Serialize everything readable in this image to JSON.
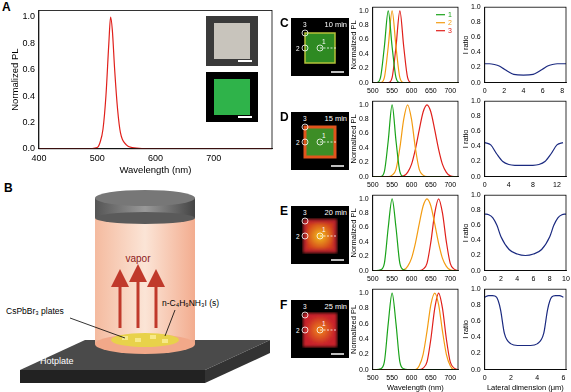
{
  "chart_data": [
    {
      "panel": "A",
      "type": "line",
      "x_label": "Wavelength (nm)",
      "y_label": "Normalized PL",
      "x": [
        400,
        480,
        500,
        505,
        510,
        515,
        520,
        523,
        526,
        530,
        535,
        540,
        550,
        560,
        600,
        700,
        800
      ],
      "series": [
        {
          "color": "#e0201b",
          "values": [
            0,
            0,
            0.01,
            0.05,
            0.15,
            0.4,
            0.8,
            1.0,
            0.9,
            0.6,
            0.3,
            0.12,
            0.03,
            0.01,
            0,
            0,
            0
          ]
        }
      ],
      "xlim": [
        400,
        800
      ],
      "ylim": [
        0,
        1.05
      ],
      "xticks": [
        400,
        500,
        600,
        700
      ],
      "yticks": [
        {
          "value": 0,
          "label": "0.0"
        },
        0.2,
        0.4,
        0.6,
        0.8,
        {
          "value": 1,
          "label": "1.0"
        }
      ],
      "grid": false
    },
    {
      "type": "line",
      "y_label": "Normalized PL",
      "x": [
        500,
        510,
        520,
        530,
        540,
        550,
        560,
        570,
        580,
        590,
        600,
        610,
        620,
        630,
        640,
        650,
        660,
        670,
        680,
        690,
        700,
        710,
        720
      ],
      "series": [
        {
          "name": "1",
          "color": "#1aa31a",
          "values": [
            0,
            0,
            0.07,
            0.5,
            1,
            0.5,
            0.07,
            0,
            0,
            0,
            0,
            0,
            0,
            0,
            0,
            0,
            0,
            0,
            0,
            0,
            0,
            0,
            0
          ]
        },
        {
          "name": "2",
          "color": "#f39c12",
          "values": [
            0,
            0,
            0,
            0.07,
            0.5,
            1,
            0.5,
            0.07,
            0,
            0,
            0,
            0,
            0,
            0,
            0,
            0,
            0,
            0,
            0,
            0,
            0,
            0,
            0
          ]
        },
        {
          "name": "3",
          "color": "#e0201b",
          "values": [
            0,
            0,
            0,
            0,
            0,
            0.07,
            0.5,
            1,
            0.5,
            0.07,
            0,
            0,
            0,
            0,
            0,
            0,
            0,
            0,
            0,
            0,
            0,
            0,
            0
          ]
        }
      ],
      "xlim": [
        500,
        720
      ],
      "ylim": [
        0,
        1.05
      ],
      "xticks": [
        500,
        550,
        600,
        650,
        700
      ],
      "yticks": [
        {
          "value": 0,
          "label": "0.0"
        },
        0.2,
        0.4,
        0.6,
        0.8,
        {
          "value": 1,
          "label": "1.0"
        }
      ],
      "legend": "top-right",
      "grid": false
    },
    {
      "type": "line",
      "y_label": "I ratio",
      "x": [
        0,
        0.5,
        1,
        1.5,
        2,
        2.5,
        3,
        4,
        5,
        5.5,
        6,
        6.5,
        7,
        7.5,
        8,
        8.4
      ],
      "series": [
        {
          "color": "#1b2a80",
          "values": [
            0.25,
            0.25,
            0.24,
            0.22,
            0.18,
            0.14,
            0.11,
            0.1,
            0.11,
            0.14,
            0.18,
            0.22,
            0.24,
            0.25,
            0.25,
            0.25
          ]
        }
      ],
      "xlim": [
        0,
        8.4
      ],
      "ylim": [
        0,
        1
      ],
      "xticks": [
        0,
        2,
        4,
        6,
        8
      ],
      "yticks": [
        {
          "value": 0,
          "label": "0.0"
        },
        0.2,
        0.4,
        0.6,
        0.8,
        {
          "value": 1,
          "label": "1.0"
        }
      ],
      "grid": false
    },
    {
      "type": "line",
      "y_label": "Normalized PL",
      "x": [
        500,
        510,
        520,
        530,
        540,
        550,
        560,
        570,
        580,
        590,
        600,
        610,
        620,
        630,
        640,
        650,
        660,
        670,
        680,
        690,
        700,
        710,
        720
      ],
      "series": [
        {
          "color": "#1aa31a",
          "values": [
            0,
            0,
            0,
            0.07,
            0.5,
            1,
            0.5,
            0.07,
            0,
            0,
            0,
            0,
            0,
            0,
            0,
            0,
            0,
            0,
            0,
            0,
            0,
            0,
            0
          ]
        },
        {
          "color": "#f39c12",
          "values": [
            0,
            0,
            0,
            0,
            0,
            0.02,
            0.1,
            0.4,
            0.8,
            1,
            0.8,
            0.4,
            0.1,
            0.02,
            0,
            0,
            0,
            0,
            0,
            0,
            0,
            0,
            0
          ]
        },
        {
          "color": "#e0201b",
          "values": [
            0,
            0,
            0,
            0,
            0,
            0,
            0,
            0,
            0.01,
            0.06,
            0.17,
            0.38,
            0.65,
            0.9,
            1,
            0.9,
            0.65,
            0.38,
            0.17,
            0.06,
            0.01,
            0,
            0
          ]
        }
      ],
      "xlim": [
        500,
        720
      ],
      "ylim": [
        0,
        1.05
      ],
      "xticks": [
        500,
        550,
        600,
        650,
        700
      ],
      "yticks": [
        {
          "value": 0,
          "label": "0.0"
        },
        0.2,
        0.4,
        0.6,
        0.8,
        {
          "value": 1,
          "label": "1.0"
        }
      ],
      "grid": false
    },
    {
      "type": "line",
      "y_label": "I ratio",
      "x": [
        0,
        1,
        2,
        3,
        4,
        5,
        6,
        7,
        8,
        9,
        10,
        11,
        12,
        13
      ],
      "series": [
        {
          "color": "#1b2a80",
          "values": [
            0.45,
            0.42,
            0.3,
            0.2,
            0.16,
            0.15,
            0.15,
            0.15,
            0.15,
            0.16,
            0.2,
            0.3,
            0.42,
            0.45
          ]
        }
      ],
      "xlim": [
        0,
        13.5
      ],
      "ylim": [
        0,
        1
      ],
      "xticks": [
        0,
        4,
        8,
        12
      ],
      "yticks": [
        {
          "value": 0,
          "label": "0.0"
        },
        0.2,
        0.4,
        0.6,
        0.8,
        {
          "value": 1,
          "label": "1.0"
        }
      ],
      "grid": false
    },
    {
      "type": "line",
      "y_label": "Normalized PL",
      "x": [
        500,
        510,
        520,
        530,
        540,
        550,
        560,
        570,
        580,
        590,
        600,
        610,
        620,
        630,
        640,
        650,
        660,
        670,
        680,
        690,
        700,
        710,
        720
      ],
      "series": [
        {
          "color": "#1aa31a",
          "values": [
            0,
            0,
            0.01,
            0.1,
            0.6,
            1,
            0.6,
            0.1,
            0.01,
            0,
            0,
            0,
            0,
            0,
            0,
            0,
            0,
            0,
            0,
            0,
            0,
            0,
            0
          ]
        },
        {
          "color": "#f39c12",
          "values": [
            0,
            0,
            0,
            0,
            0,
            0,
            0,
            0,
            0.01,
            0.06,
            0.17,
            0.38,
            0.65,
            0.9,
            1,
            0.9,
            0.65,
            0.38,
            0.17,
            0.06,
            0.01,
            0,
            0
          ]
        },
        {
          "color": "#e0201b",
          "values": [
            0,
            0,
            0,
            0,
            0,
            0,
            0,
            0,
            0,
            0,
            0,
            0,
            0,
            0.02,
            0.1,
            0.4,
            0.8,
            1,
            0.8,
            0.4,
            0.1,
            0.02,
            0
          ]
        }
      ],
      "xlim": [
        500,
        720
      ],
      "ylim": [
        0,
        1.05
      ],
      "xticks": [
        500,
        550,
        600,
        650,
        700
      ],
      "yticks": [
        {
          "value": 0,
          "label": "0.0"
        },
        0.2,
        0.4,
        0.6,
        0.8,
        {
          "value": 1,
          "label": "1.0"
        }
      ],
      "grid": false
    },
    {
      "type": "line",
      "y_label": "I ratio",
      "x": [
        0,
        0.5,
        1,
        1.5,
        2,
        3,
        4,
        5,
        6,
        7,
        8,
        8.5,
        9,
        9.5,
        10
      ],
      "series": [
        {
          "color": "#1b2a80",
          "values": [
            0.75,
            0.74,
            0.7,
            0.6,
            0.45,
            0.28,
            0.22,
            0.2,
            0.22,
            0.28,
            0.45,
            0.6,
            0.7,
            0.74,
            0.75
          ]
        }
      ],
      "xlim": [
        0,
        10
      ],
      "ylim": [
        0,
        1
      ],
      "xticks": [
        0,
        2,
        4,
        6,
        8,
        10
      ],
      "yticks": [
        {
          "value": 0,
          "label": "0.0"
        },
        0.2,
        0.4,
        0.6,
        0.8,
        {
          "value": 1,
          "label": "1.0"
        }
      ],
      "grid": false
    },
    {
      "type": "line",
      "x_label": "Wavelength (nm)",
      "y_label": "Normalized PL",
      "x": [
        500,
        510,
        520,
        530,
        540,
        550,
        560,
        570,
        580,
        590,
        600,
        610,
        620,
        630,
        640,
        650,
        660,
        670,
        680,
        690,
        700,
        710,
        720
      ],
      "series": [
        {
          "color": "#1aa31a",
          "values": [
            0,
            0,
            0.01,
            0.1,
            0.6,
            1,
            0.6,
            0.1,
            0.01,
            0,
            0,
            0,
            0,
            0,
            0,
            0,
            0,
            0,
            0,
            0,
            0,
            0,
            0
          ]
        },
        {
          "color": "#f39c12",
          "values": [
            0,
            0,
            0,
            0,
            0,
            0,
            0,
            0,
            0,
            0,
            0,
            0,
            0.05,
            0.2,
            0.5,
            0.85,
            1,
            0.85,
            0.5,
            0.2,
            0.05,
            0,
            0
          ]
        },
        {
          "color": "#e0201b",
          "values": [
            0,
            0,
            0,
            0,
            0,
            0,
            0,
            0,
            0,
            0,
            0,
            0,
            0,
            0.02,
            0.1,
            0.4,
            0.8,
            1,
            0.8,
            0.4,
            0.1,
            0.02,
            0
          ]
        }
      ],
      "xlim": [
        500,
        720
      ],
      "ylim": [
        0,
        1.05
      ],
      "xticks": [
        500,
        550,
        600,
        650,
        700
      ],
      "yticks": [
        {
          "value": 0,
          "label": "0.0"
        },
        0.2,
        0.4,
        0.6,
        0.8,
        {
          "value": 1,
          "label": "1.0"
        }
      ],
      "grid": false
    },
    {
      "type": "line",
      "x_label": "Lateral dimension (μm)",
      "y_label": "I ratio",
      "x": [
        0,
        0.3,
        0.6,
        0.9,
        1.2,
        1.5,
        2,
        2.5,
        3,
        3.5,
        4,
        4.5,
        4.8,
        5.1,
        5.4,
        5.7,
        6
      ],
      "series": [
        {
          "color": "#1b2a80",
          "values": [
            0.9,
            0.92,
            0.92,
            0.9,
            0.75,
            0.45,
            0.32,
            0.3,
            0.3,
            0.3,
            0.32,
            0.45,
            0.75,
            0.9,
            0.92,
            0.92,
            0.9
          ]
        }
      ],
      "xlim": [
        0,
        6.2
      ],
      "ylim": [
        0,
        1
      ],
      "xticks": [
        0,
        2,
        4,
        6
      ],
      "yticks": [
        {
          "value": 0,
          "label": "0.0"
        },
        0.2,
        0.4,
        0.6,
        0.8,
        {
          "value": 1,
          "label": "1.0"
        }
      ],
      "grid": false
    }
  ],
  "diagram": {
    "panel": "B",
    "labels": {
      "vapor": "vapor",
      "reagent": "n-C₄H₉NH₃I (s)",
      "plates": "CsPbBr₃ plates",
      "hotplate": "Hotplate"
    }
  },
  "images": [
    {
      "panel": "C",
      "label": "10 min",
      "markers": [
        "1",
        "2",
        "3"
      ]
    },
    {
      "panel": "D",
      "label": "15 min",
      "markers": [
        "1",
        "2",
        "3"
      ]
    },
    {
      "panel": "E",
      "label": "20 min",
      "markers": [
        "1",
        "2",
        "3"
      ]
    },
    {
      "panel": "F",
      "label": "25 min",
      "markers": [
        "1",
        "2",
        "3"
      ]
    }
  ]
}
